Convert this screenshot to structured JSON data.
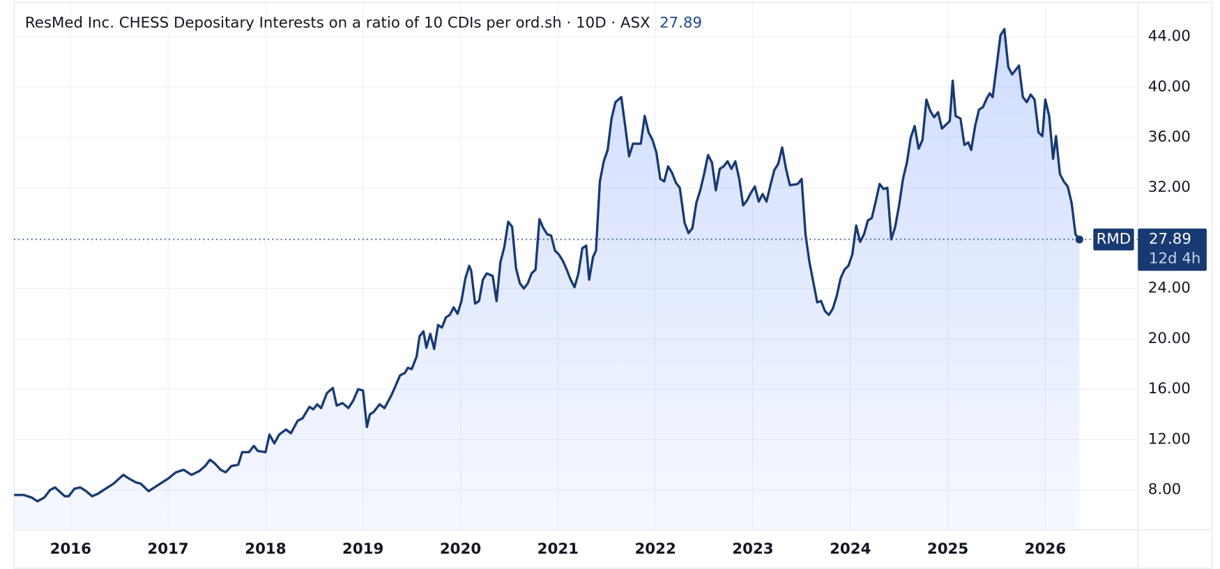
{
  "chart_data": {
    "type": "line",
    "title": "ResMed Inc. CHESS Depositary Interests on a ratio of 10 CDIs per ord.sh · 10D · ASX",
    "last_value": 27.89,
    "symbol": "RMD",
    "countdown": "12d 4h",
    "color": "#173a73",
    "grid": true,
    "xlim": [
      2015.42,
      2026.95
    ],
    "ylim": [
      4.83,
      46.6
    ],
    "xticks": [
      2016,
      2017,
      2018,
      2019,
      2020,
      2021,
      2022,
      2023,
      2024,
      2025,
      2026
    ],
    "yticks": [
      {
        "value": 8,
        "label": "8.00"
      },
      {
        "value": 12,
        "label": "12.00"
      },
      {
        "value": 16,
        "label": "16.00"
      },
      {
        "value": 20,
        "label": "20.00"
      },
      {
        "value": 24,
        "label": "24.00"
      },
      {
        "value": 28,
        "label": "28.00"
      },
      {
        "value": 32,
        "label": "32.00"
      },
      {
        "value": 36,
        "label": "36.00"
      },
      {
        "value": 40,
        "label": "40.00"
      },
      {
        "value": 44,
        "label": "44.00"
      }
    ],
    "x": [
      2015.42,
      2015.52,
      2015.6,
      2015.66,
      2015.73,
      2015.79,
      2015.84,
      2015.94,
      2015.98,
      2016.04,
      2016.1,
      2016.16,
      2016.22,
      2016.28,
      2016.36,
      2016.44,
      2016.54,
      2016.6,
      2016.67,
      2016.72,
      2016.8,
      2016.88,
      2016.94,
      2017.0,
      2017.08,
      2017.16,
      2017.24,
      2017.32,
      2017.38,
      2017.43,
      2017.48,
      2017.54,
      2017.59,
      2017.65,
      2017.72,
      2017.76,
      2017.83,
      2017.88,
      2017.92,
      2018.0,
      2018.04,
      2018.09,
      2018.14,
      2018.21,
      2018.26,
      2018.33,
      2018.38,
      2018.45,
      2018.49,
      2018.53,
      2018.57,
      2018.63,
      2018.69,
      2018.73,
      2018.79,
      2018.85,
      2018.9,
      2018.95,
      2019.0,
      2019.04,
      2019.07,
      2019.11,
      2019.17,
      2019.22,
      2019.29,
      2019.33,
      2019.38,
      2019.43,
      2019.46,
      2019.5,
      2019.55,
      2019.58,
      2019.62,
      2019.65,
      2019.69,
      2019.73,
      2019.77,
      2019.81,
      2019.85,
      2019.89,
      2019.93,
      2019.97,
      2020.01,
      2020.05,
      2020.09,
      2020.11,
      2020.15,
      2020.19,
      2020.23,
      2020.27,
      2020.33,
      2020.37,
      2020.41,
      2020.45,
      2020.49,
      2020.53,
      2020.57,
      2020.61,
      2020.65,
      2020.69,
      2020.73,
      2020.77,
      2020.81,
      2020.85,
      2020.89,
      2020.93,
      2020.97,
      2021.01,
      2021.05,
      2021.09,
      2021.13,
      2021.17,
      2021.21,
      2021.25,
      2021.29,
      2021.32,
      2021.36,
      2021.39,
      2021.43,
      2021.47,
      2021.51,
      2021.55,
      2021.59,
      2021.65,
      2021.69,
      2021.73,
      2021.77,
      2021.85,
      2021.89,
      2021.93,
      2021.97,
      2022.01,
      2022.05,
      2022.09,
      2022.13,
      2022.17,
      2022.21,
      2022.25,
      2022.3,
      2022.34,
      2022.38,
      2022.42,
      2022.46,
      2022.5,
      2022.54,
      2022.58,
      2022.62,
      2022.66,
      2022.7,
      2022.74,
      2022.78,
      2022.82,
      2022.86,
      2022.9,
      2022.94,
      2022.98,
      2023.02,
      2023.06,
      2023.1,
      2023.14,
      2023.18,
      2023.22,
      2023.26,
      2023.3,
      2023.34,
      2023.38,
      2023.46,
      2023.5,
      2023.54,
      2023.58,
      2023.62,
      2023.66,
      2023.7,
      2023.74,
      2023.78,
      2023.82,
      2023.86,
      2023.9,
      2023.94,
      2023.98,
      2024.02,
      2024.06,
      2024.1,
      2024.14,
      2024.18,
      2024.22,
      2024.26,
      2024.3,
      2024.34,
      2024.38,
      2024.42,
      2024.46,
      2024.5,
      2024.54,
      2024.58,
      2024.62,
      2024.66,
      2024.7,
      2024.74,
      2024.78,
      2024.82,
      2024.86,
      2024.9,
      2024.94,
      2024.98,
      2025.02,
      2025.05,
      2025.08,
      2025.13,
      2025.17,
      2025.21,
      2025.24,
      2025.28,
      2025.32,
      2025.36,
      2025.4,
      2025.43,
      2025.46,
      2025.5,
      2025.54,
      2025.58,
      2025.62,
      2025.66,
      2025.73,
      2025.77,
      2025.81,
      2025.85,
      2025.89,
      2025.93,
      2025.97,
      2026.0,
      2026.04,
      2026.08,
      2026.11,
      2026.15,
      2026.19,
      2026.23,
      2026.27,
      2026.31,
      2026.35
    ],
    "values": [
      7.6,
      7.6,
      7.4,
      7.1,
      7.4,
      8.0,
      8.2,
      7.5,
      7.5,
      8.1,
      8.2,
      7.9,
      7.5,
      7.7,
      8.1,
      8.5,
      9.2,
      8.9,
      8.6,
      8.5,
      7.9,
      8.3,
      8.6,
      8.9,
      9.4,
      9.6,
      9.2,
      9.5,
      9.9,
      10.4,
      10.1,
      9.6,
      9.4,
      9.9,
      10.0,
      11.0,
      11.0,
      11.5,
      11.1,
      11.0,
      12.4,
      11.7,
      12.4,
      12.8,
      12.5,
      13.5,
      13.7,
      14.6,
      14.4,
      14.8,
      14.5,
      15.7,
      16.1,
      14.7,
      14.9,
      14.5,
      15.1,
      16.0,
      15.9,
      13.0,
      14.0,
      14.2,
      14.8,
      14.5,
      15.5,
      16.2,
      17.1,
      17.3,
      17.7,
      17.6,
      18.6,
      20.2,
      20.6,
      19.3,
      20.4,
      19.2,
      21.1,
      20.9,
      21.7,
      21.9,
      22.5,
      22.0,
      23.0,
      24.8,
      25.8,
      25.4,
      22.8,
      23.0,
      24.7,
      25.2,
      25.0,
      23.0,
      26.1,
      27.3,
      29.3,
      28.9,
      25.6,
      24.4,
      24.0,
      24.4,
      25.2,
      25.5,
      29.5,
      28.8,
      28.3,
      28.2,
      27.0,
      26.7,
      26.2,
      25.5,
      24.7,
      24.1,
      25.2,
      27.2,
      27.4,
      24.7,
      26.5,
      27.0,
      32.5,
      34.1,
      35.0,
      37.5,
      38.8,
      39.2,
      36.9,
      34.5,
      35.5,
      35.5,
      37.7,
      36.4,
      35.8,
      34.8,
      32.7,
      32.5,
      33.7,
      33.2,
      32.4,
      32.0,
      29.2,
      28.4,
      28.8,
      30.8,
      31.8,
      33.1,
      34.6,
      34.0,
      31.8,
      33.5,
      33.7,
      34.1,
      33.5,
      34.1,
      32.7,
      30.6,
      31.0,
      31.6,
      32.1,
      30.9,
      31.5,
      30.9,
      32.2,
      33.4,
      33.9,
      35.2,
      33.5,
      32.2,
      32.3,
      32.7,
      28.3,
      26.1,
      24.5,
      22.9,
      23.0,
      22.2,
      21.9,
      22.4,
      23.4,
      24.8,
      25.5,
      25.8,
      26.7,
      29.0,
      27.7,
      28.3,
      29.4,
      29.6,
      30.9,
      32.3,
      31.9,
      32.0,
      27.9,
      28.9,
      30.6,
      32.7,
      34.0,
      36.0,
      36.9,
      35.1,
      35.8,
      39.0,
      38.1,
      37.6,
      38.0,
      36.7,
      37.0,
      37.3,
      40.5,
      37.7,
      37.5,
      35.4,
      35.6,
      35.0,
      36.9,
      38.2,
      38.4,
      39.1,
      39.5,
      39.2,
      41.6,
      44.1,
      44.6,
      41.6,
      41.0,
      41.7,
      39.2,
      38.8,
      39.4,
      39.0,
      36.4,
      36.1,
      39.0,
      37.7,
      34.3,
      36.1,
      33.1,
      32.5,
      32.1,
      30.8,
      28.3,
      27.89
    ]
  }
}
